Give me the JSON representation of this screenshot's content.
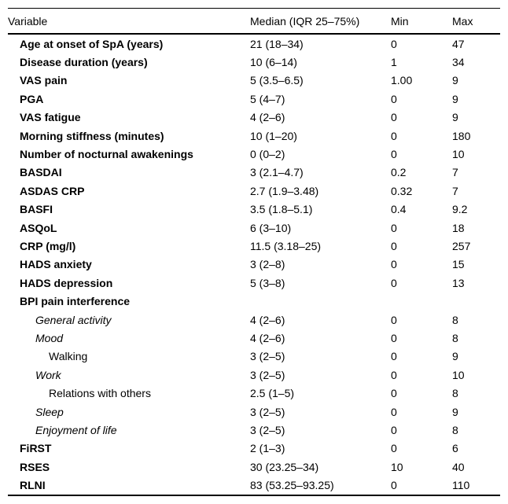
{
  "table": {
    "columns": [
      "Variable",
      "Median (IQR 25–75%)",
      "Min",
      "Max"
    ],
    "rows": [
      {
        "variable": "Age at onset of SpA (years)",
        "median": "21 (18–34)",
        "min": "0",
        "max": "47",
        "style": "bold",
        "indent": 0
      },
      {
        "variable": "Disease duration (years)",
        "median": "10 (6–14)",
        "min": "1",
        "max": "34",
        "style": "bold",
        "indent": 0
      },
      {
        "variable": "VAS pain",
        "median": "5 (3.5–6.5)",
        "min": "1.00",
        "max": "9",
        "style": "bold",
        "indent": 0
      },
      {
        "variable": "PGA",
        "median": "5 (4–7)",
        "min": "0",
        "max": "9",
        "style": "bold",
        "indent": 0
      },
      {
        "variable": "VAS fatigue",
        "median": "4 (2–6)",
        "min": "0",
        "max": "9",
        "style": "bold",
        "indent": 0
      },
      {
        "variable": "Morning stiffness (minutes)",
        "median": "10 (1–20)",
        "min": "0",
        "max": "180",
        "style": "bold",
        "indent": 0
      },
      {
        "variable": "Number of nocturnal awakenings",
        "median": "0 (0–2)",
        "min": "0",
        "max": "10",
        "style": "bold",
        "indent": 0
      },
      {
        "variable": "BASDAI",
        "median": "3 (2.1–4.7)",
        "min": "0.2",
        "max": "7",
        "style": "bold",
        "indent": 0
      },
      {
        "variable": "ASDAS CRP",
        "median": "2.7 (1.9–3.48)",
        "min": "0.32",
        "max": "7",
        "style": "bold",
        "indent": 0
      },
      {
        "variable": "BASFI",
        "median": "3.5 (1.8–5.1)",
        "min": "0.4",
        "max": "9.2",
        "style": "bold",
        "indent": 0
      },
      {
        "variable": "ASQoL",
        "median": "6 (3–10)",
        "min": "0",
        "max": "18",
        "style": "bold",
        "indent": 0
      },
      {
        "variable": "CRP (mg/l)",
        "median": "11.5 (3.18–25)",
        "min": "0",
        "max": "257",
        "style": "bold",
        "indent": 0
      },
      {
        "variable": "HADS anxiety",
        "median": "3 (2–8)",
        "min": "0",
        "max": "15",
        "style": "bold",
        "indent": 0
      },
      {
        "variable": "HADS depression",
        "median": "5 (3–8)",
        "min": "0",
        "max": "13",
        "style": "bold",
        "indent": 0
      },
      {
        "variable": "BPI pain interference",
        "median": "",
        "min": "",
        "max": "",
        "style": "bold",
        "indent": 0
      },
      {
        "variable": "General activity",
        "median": "4 (2–6)",
        "min": "0",
        "max": "8",
        "style": "italic",
        "indent": 1
      },
      {
        "variable": "Mood",
        "median": "4 (2–6)",
        "min": "0",
        "max": "8",
        "style": "italic",
        "indent": 1
      },
      {
        "variable": "Walking",
        "median": "3 (2–5)",
        "min": "0",
        "max": "9",
        "style": "plain",
        "indent": 2
      },
      {
        "variable": "Work",
        "median": "3 (2–5)",
        "min": "0",
        "max": "10",
        "style": "italic",
        "indent": 1
      },
      {
        "variable": "Relations with others",
        "median": "2.5 (1–5)",
        "min": "0",
        "max": "8",
        "style": "plain",
        "indent": 2
      },
      {
        "variable": "Sleep",
        "median": "3 (2–5)",
        "min": "0",
        "max": "9",
        "style": "italic",
        "indent": 1
      },
      {
        "variable": "Enjoyment of life",
        "median": "3 (2–5)",
        "min": "0",
        "max": "8",
        "style": "italic",
        "indent": 1
      },
      {
        "variable": "FiRST",
        "median": "2 (1–3)",
        "min": "0",
        "max": "6",
        "style": "bold",
        "indent": 0
      },
      {
        "variable": "RSES",
        "median": "30 (23.25–34)",
        "min": "10",
        "max": "40",
        "style": "bold",
        "indent": 0
      },
      {
        "variable": "RLNI",
        "median": "83 (53.25–93.25)",
        "min": "0",
        "max": "110",
        "style": "bold",
        "indent": 0
      }
    ]
  },
  "colors": {
    "text": "#000000",
    "border": "#000000",
    "background": "#ffffff"
  }
}
